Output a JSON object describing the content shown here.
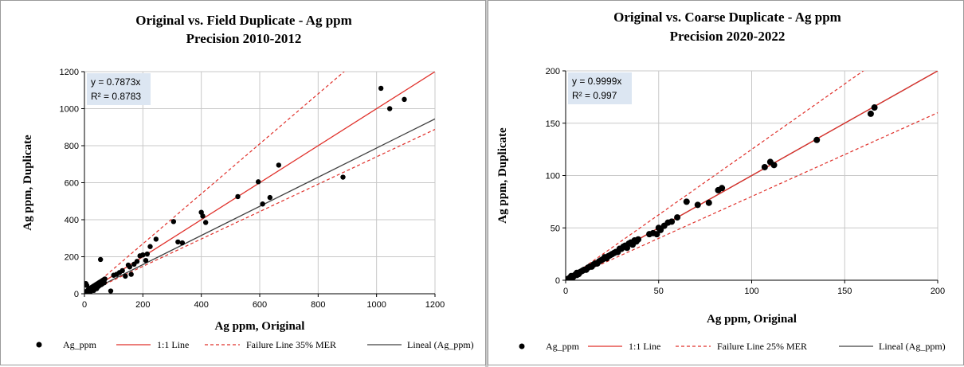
{
  "chart_data": [
    {
      "type": "scatter",
      "title": "Original vs. Field Duplicate - Ag ppm",
      "subtitle": "Precision 2010-2012",
      "xlabel": "Ag ppm, Original",
      "ylabel": "Ag ppm, Duplicate",
      "xlim": [
        0,
        1200
      ],
      "ylim": [
        0,
        1200
      ],
      "xticks": [
        0,
        200,
        400,
        600,
        800,
        1000,
        1200
      ],
      "yticks": [
        0,
        200,
        400,
        600,
        800,
        1000,
        1200
      ],
      "grid": true,
      "legend_position": "bottom",
      "equation": "y = 0.7873x",
      "r2": "R² = 0.8783",
      "lines": {
        "identity_slope": 1,
        "failure_slopes": [
          1.35,
          0.74
        ],
        "fit_slope": 0.7873
      },
      "legend": [
        "Ag_ppm",
        "1:1 Line",
        "Failure Line 35% MER",
        "Lineal (Ag_ppm)"
      ],
      "series": [
        {
          "name": "Ag_ppm",
          "points": [
            [
              2,
              5
            ],
            [
              4,
              8
            ],
            [
              6,
              12
            ],
            [
              8,
              3
            ],
            [
              10,
              15
            ],
            [
              12,
              20
            ],
            [
              15,
              8
            ],
            [
              18,
              25
            ],
            [
              20,
              30
            ],
            [
              22,
              14
            ],
            [
              25,
              35
            ],
            [
              28,
              22
            ],
            [
              30,
              40
            ],
            [
              32,
              18
            ],
            [
              35,
              45
            ],
            [
              38,
              30
            ],
            [
              40,
              50
            ],
            [
              42,
              28
            ],
            [
              45,
              55
            ],
            [
              48,
              40
            ],
            [
              50,
              60
            ],
            [
              52,
              45
            ],
            [
              55,
              65
            ],
            [
              58,
              50
            ],
            [
              60,
              70
            ],
            [
              62,
              55
            ],
            [
              65,
              75
            ],
            [
              68,
              60
            ],
            [
              70,
              80
            ],
            [
              5,
              55
            ],
            [
              8,
              45
            ],
            [
              55,
              185
            ],
            [
              90,
              15
            ],
            [
              100,
              100
            ],
            [
              110,
              105
            ],
            [
              120,
              115
            ],
            [
              130,
              125
            ],
            [
              140,
              95
            ],
            [
              150,
              155
            ],
            [
              155,
              145
            ],
            [
              160,
              105
            ],
            [
              170,
              160
            ],
            [
              180,
              175
            ],
            [
              190,
              205
            ],
            [
              200,
              210
            ],
            [
              210,
              180
            ],
            [
              215,
              215
            ],
            [
              225,
              255
            ],
            [
              245,
              295
            ],
            [
              305,
              390
            ],
            [
              320,
              280
            ],
            [
              335,
              275
            ],
            [
              400,
              440
            ],
            [
              405,
              420
            ],
            [
              415,
              385
            ],
            [
              525,
              525
            ],
            [
              595,
              605
            ],
            [
              610,
              485
            ],
            [
              635,
              520
            ],
            [
              665,
              695
            ],
            [
              885,
              630
            ],
            [
              1015,
              1110
            ],
            [
              1045,
              1000
            ],
            [
              1095,
              1050
            ]
          ]
        }
      ]
    },
    {
      "type": "scatter",
      "title": "Original vs. Coarse Duplicate - Ag ppm",
      "subtitle": "Precision 2020-2022",
      "xlabel": "Ag ppm, Original",
      "ylabel": "Ag ppm, Duplicate",
      "xlim": [
        0,
        200
      ],
      "ylim": [
        0,
        200
      ],
      "xticks": [
        0,
        50,
        100,
        150,
        200
      ],
      "yticks": [
        0,
        50,
        100,
        150,
        200
      ],
      "grid": true,
      "legend_position": "bottom",
      "equation": "y = 0.9999x",
      "r2": "R² = 0.997",
      "lines": {
        "identity_slope": 1,
        "failure_slopes": [
          1.25,
          0.8
        ],
        "fit_slope": 0.9999
      },
      "legend": [
        "Ag_ppm",
        "1:1 Line",
        "Failure Line 25% MER",
        "Lineal (Ag_ppm)"
      ],
      "series": [
        {
          "name": "Ag_ppm",
          "points": [
            [
              1,
              1
            ],
            [
              2,
              2
            ],
            [
              3,
              3
            ],
            [
              3,
              4
            ],
            [
              4,
              3
            ],
            [
              5,
              5
            ],
            [
              6,
              5
            ],
            [
              6,
              7
            ],
            [
              7,
              6
            ],
            [
              8,
              8
            ],
            [
              9,
              9
            ],
            [
              10,
              10
            ],
            [
              11,
              10
            ],
            [
              12,
              12
            ],
            [
              13,
              13
            ],
            [
              14,
              13
            ],
            [
              15,
              15
            ],
            [
              16,
              16
            ],
            [
              17,
              16
            ],
            [
              18,
              18
            ],
            [
              19,
              19
            ],
            [
              20,
              20
            ],
            [
              21,
              22
            ],
            [
              22,
              21
            ],
            [
              23,
              23
            ],
            [
              24,
              24
            ],
            [
              25,
              25
            ],
            [
              26,
              26
            ],
            [
              27,
              27
            ],
            [
              28,
              27
            ],
            [
              29,
              30
            ],
            [
              30,
              30
            ],
            [
              31,
              32
            ],
            [
              32,
              33
            ],
            [
              33,
              31
            ],
            [
              34,
              35
            ],
            [
              35,
              36
            ],
            [
              36,
              34
            ],
            [
              37,
              38
            ],
            [
              38,
              37
            ],
            [
              39,
              39
            ],
            [
              45,
              44
            ],
            [
              47,
              45
            ],
            [
              49,
              44
            ],
            [
              50,
              50
            ],
            [
              51,
              48
            ],
            [
              53,
              52
            ],
            [
              55,
              55
            ],
            [
              57,
              56
            ],
            [
              60,
              60
            ],
            [
              65,
              75
            ],
            [
              71,
              72
            ],
            [
              77,
              74
            ],
            [
              82,
              86
            ],
            [
              84,
              88
            ],
            [
              107,
              108
            ],
            [
              110,
              113
            ],
            [
              112,
              110
            ],
            [
              135,
              134
            ],
            [
              164,
              159
            ],
            [
              166,
              165
            ]
          ]
        }
      ]
    }
  ]
}
